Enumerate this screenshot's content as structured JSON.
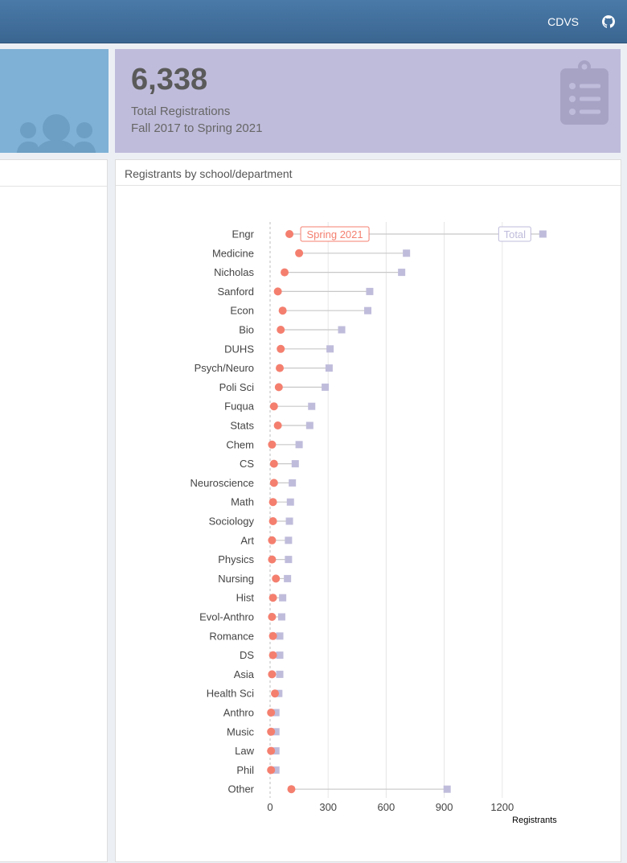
{
  "header": {
    "brand": "CDVS",
    "github_icon": "github-icon"
  },
  "stat_box": {
    "icon": "users-icon",
    "value": "6,338",
    "label_line1": "Total Registrations",
    "label_line2": "Fall 2017 to Spring 2021",
    "side_icon": "clipboard-list-icon"
  },
  "panel": {
    "title": "Registrants by school/department"
  },
  "colors": {
    "spring": "#f47f6f",
    "total": "#bfbcdb",
    "segment": "#c8c8c8",
    "grid": "#e6e6e6"
  },
  "chart_data": {
    "type": "dumbbell",
    "xlabel": "Registrants",
    "xlim": [
      -20,
      1500
    ],
    "xticks": [
      0,
      300,
      600,
      900,
      1200
    ],
    "categories": [
      "Engr",
      "Medicine",
      "Nicholas",
      "Sanford",
      "Econ",
      "Bio",
      "DUHS",
      "Psych/Neuro",
      "Poli Sci",
      "Fuqua",
      "Stats",
      "Chem",
      "CS",
      "Neuroscience",
      "Math",
      "Sociology",
      "Art",
      "Physics",
      "Nursing",
      "Hist",
      "Evol-Anthro",
      "Romance",
      "DS",
      "Asia",
      "Health Sci",
      "Anthro",
      "Music",
      "Law",
      "Phil",
      "Other"
    ],
    "series": [
      {
        "name": "Spring 2021",
        "values": [
          100,
          150,
          75,
          40,
          65,
          55,
          55,
          50,
          45,
          20,
          40,
          10,
          20,
          20,
          15,
          15,
          10,
          10,
          30,
          15,
          10,
          15,
          15,
          10,
          25,
          5,
          5,
          5,
          5,
          110
        ]
      },
      {
        "name": "Total",
        "values": [
          1410,
          705,
          680,
          515,
          505,
          370,
          310,
          305,
          285,
          215,
          205,
          150,
          130,
          115,
          105,
          100,
          95,
          95,
          90,
          65,
          60,
          50,
          50,
          50,
          45,
          30,
          30,
          30,
          30,
          915
        ]
      }
    ]
  }
}
